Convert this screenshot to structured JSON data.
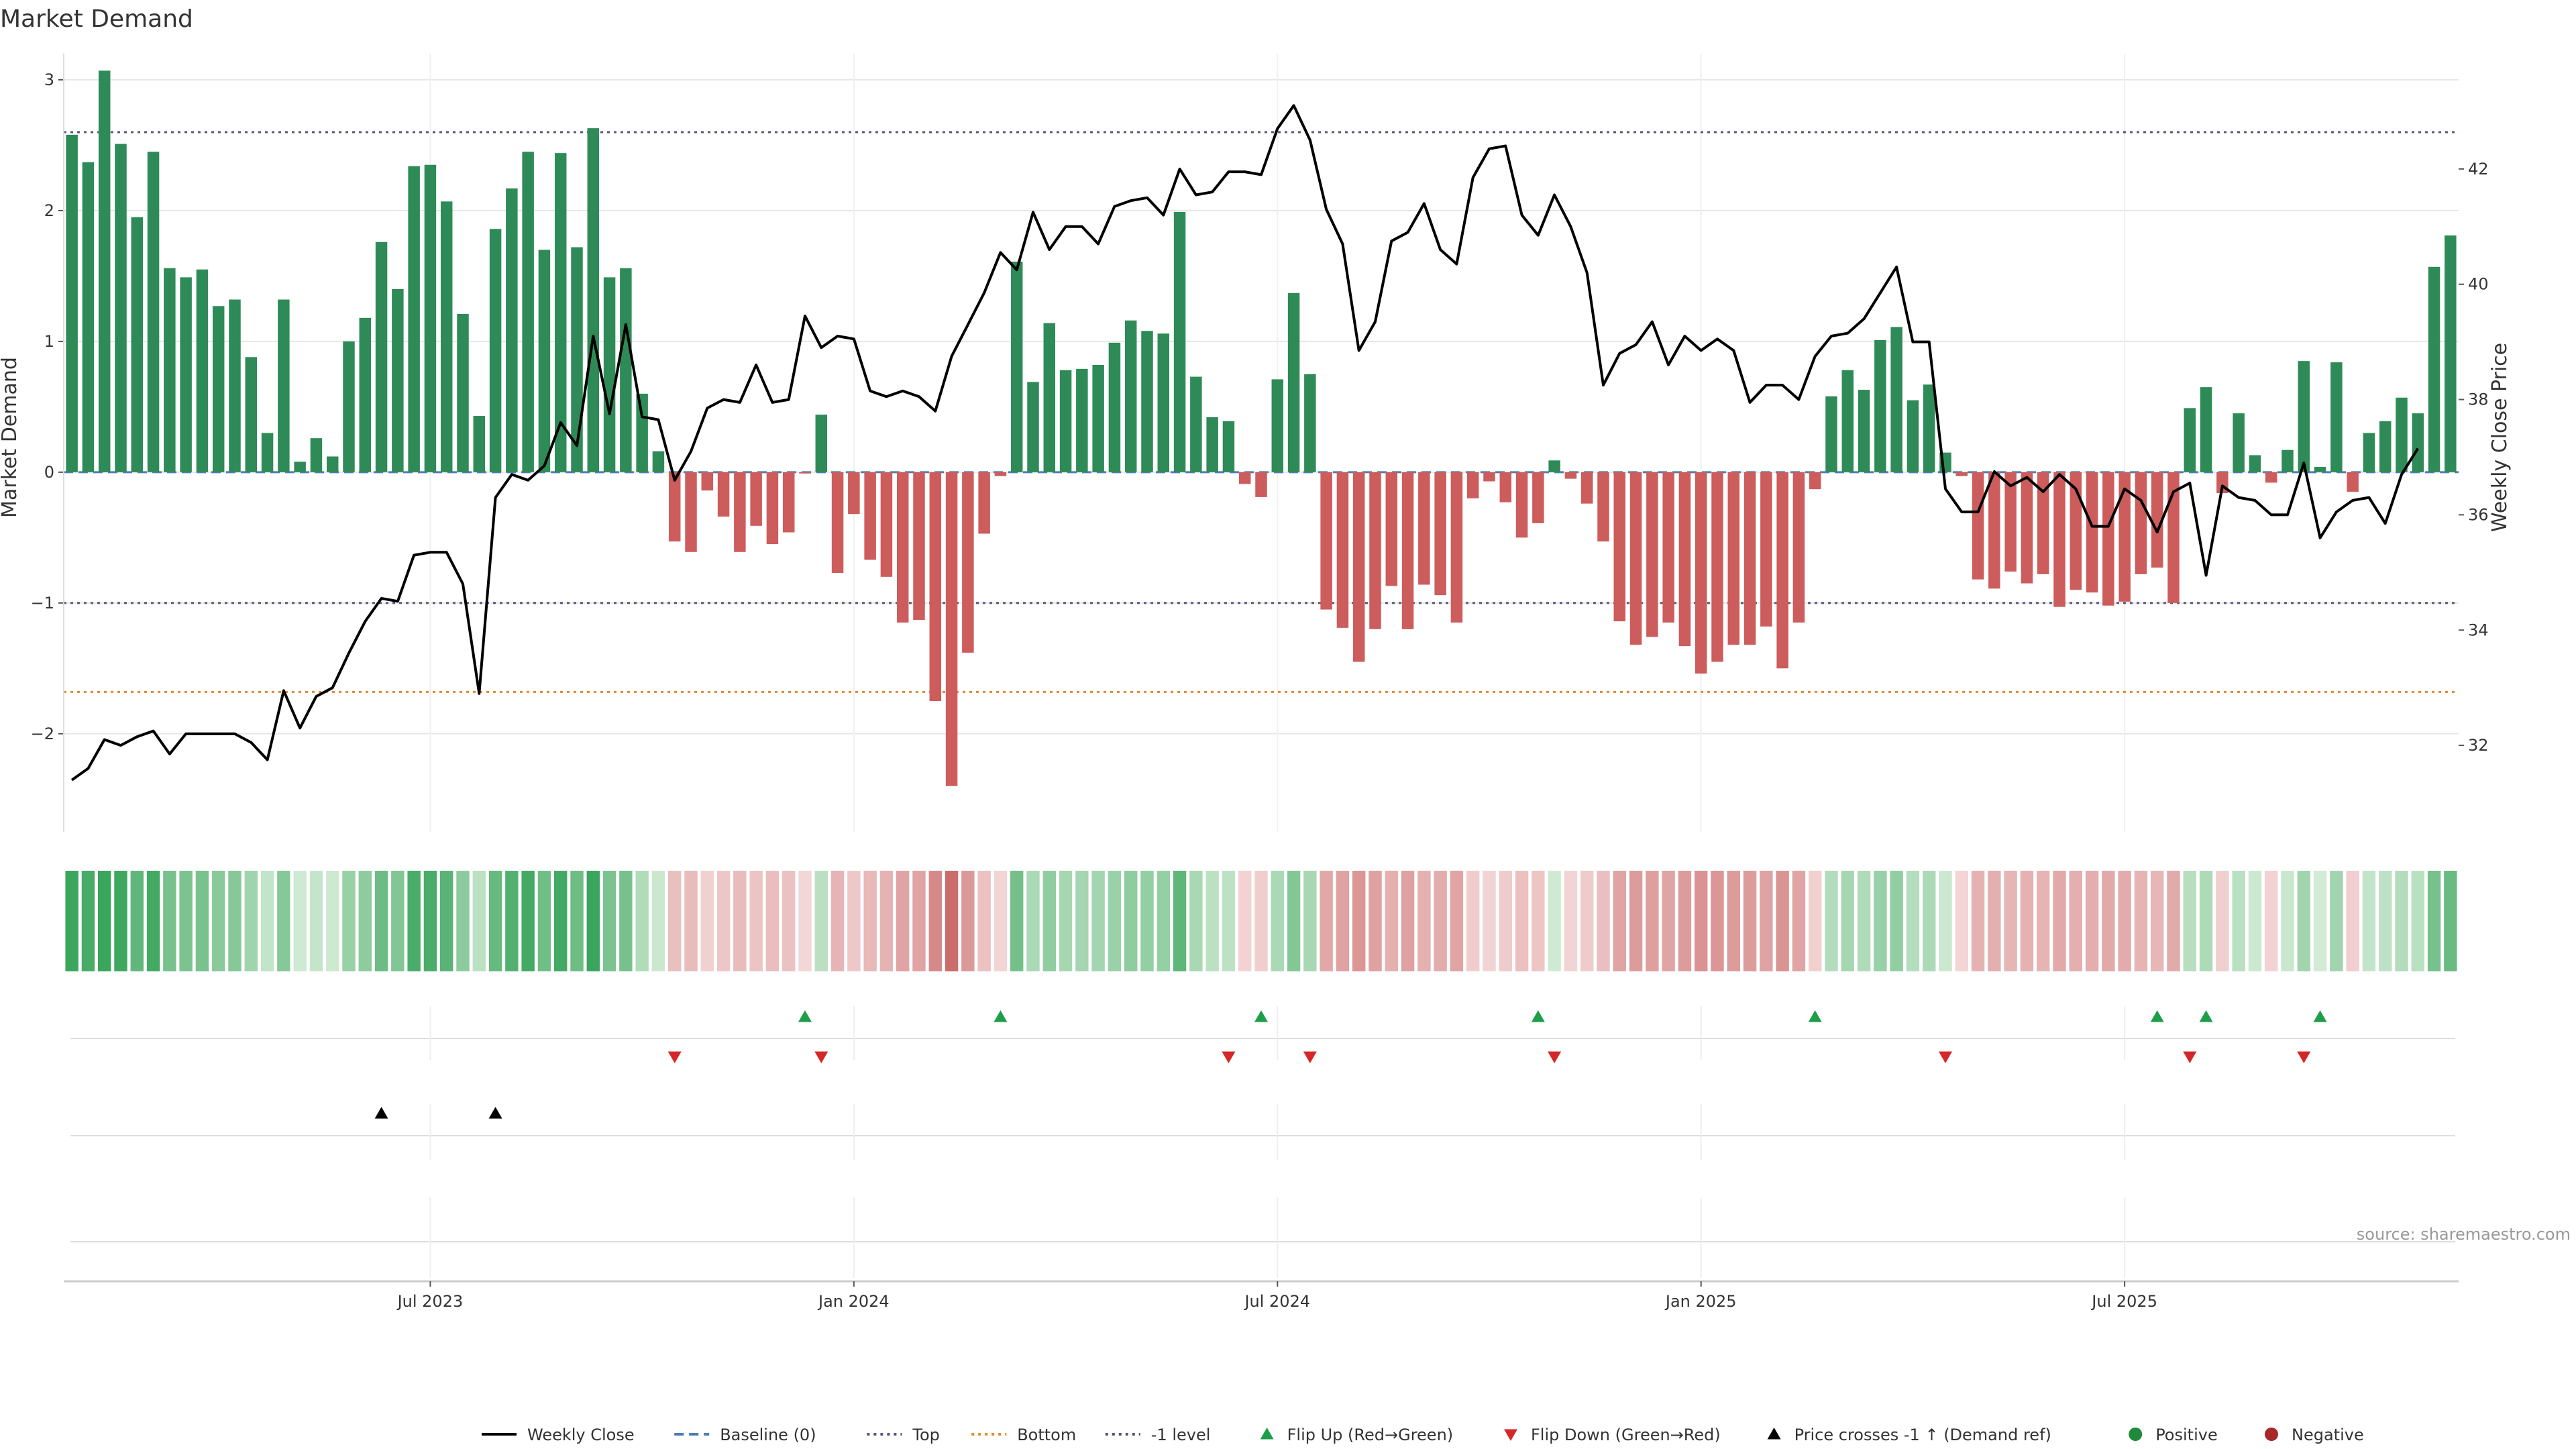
{
  "chart_data": {
    "type": "bar",
    "title": "Market Demand",
    "ylabel_left": "Market Demand",
    "ylabel_right": "Weekly Close Price",
    "ylim_left": [
      -2.75,
      3.2
    ],
    "ylim_right": [
      30.5,
      44.0
    ],
    "left_ticks": [
      3,
      2,
      1,
      0,
      -1,
      -2
    ],
    "left_tick_labels": [
      "3",
      "2",
      "1",
      "0",
      "−1",
      "−2"
    ],
    "right_ticks": [
      42,
      40,
      38,
      36,
      34,
      32
    ],
    "right_tick_labels": [
      "42",
      "40",
      "38",
      "36",
      "34",
      "32"
    ],
    "x_tick_labels": [
      {
        "label": "Jul 2023",
        "week": 22
      },
      {
        "label": "Jan 2024",
        "week": 48
      },
      {
        "label": "Jul 2024",
        "week": 74
      },
      {
        "label": "Jan 2025",
        "week": 100
      },
      {
        "label": "Jul 2025",
        "week": 126
      }
    ],
    "reference_lines": {
      "top": 2.6,
      "bottom": -1.68,
      "minus_one": -1.0,
      "baseline": 0
    },
    "demand": [
      2.58,
      2.37,
      3.07,
      2.51,
      1.95,
      2.45,
      1.56,
      1.49,
      1.55,
      1.27,
      1.32,
      0.88,
      0.3,
      1.32,
      0.08,
      0.26,
      0.12,
      1.0,
      1.18,
      1.76,
      1.4,
      2.34,
      2.35,
      2.07,
      1.21,
      0.43,
      1.86,
      2.17,
      2.45,
      1.7,
      2.44,
      1.72,
      2.63,
      1.49,
      1.56,
      0.6,
      0.16,
      -0.53,
      -0.61,
      -0.14,
      -0.34,
      -0.61,
      -0.41,
      -0.55,
      -0.46,
      -0.01,
      0.44,
      -0.77,
      -0.32,
      -0.67,
      -0.8,
      -1.15,
      -1.13,
      -1.75,
      -2.4,
      -1.38,
      -0.47,
      -0.03,
      1.61,
      0.69,
      1.14,
      0.78,
      0.79,
      0.82,
      0.99,
      1.16,
      1.08,
      1.06,
      1.99,
      0.73,
      0.42,
      0.39,
      -0.09,
      -0.19,
      0.71,
      1.37,
      0.75,
      -1.05,
      -1.19,
      -1.45,
      -1.2,
      -0.87,
      -1.2,
      -0.86,
      -0.94,
      -1.15,
      -0.2,
      -0.07,
      -0.23,
      -0.5,
      -0.39,
      0.09,
      -0.05,
      -0.24,
      -0.53,
      -1.14,
      -1.32,
      -1.26,
      -1.15,
      -1.33,
      -1.54,
      -1.45,
      -1.32,
      -1.32,
      -1.18,
      -1.5,
      -1.15,
      -0.13,
      0.58,
      0.78,
      0.63,
      1.01,
      1.11,
      0.55,
      0.67,
      0.15,
      -0.03,
      -0.82,
      -0.89,
      -0.76,
      -0.85,
      -0.78,
      -1.03,
      -0.9,
      -0.92,
      -1.02,
      -0.99,
      -0.78,
      -0.73,
      -1.0,
      0.49,
      0.65,
      -0.16,
      0.45,
      0.13,
      -0.08,
      0.17,
      0.85,
      0.04,
      0.84,
      -0.15,
      0.3,
      0.39,
      0.57,
      0.45,
      1.57,
      1.81
    ],
    "weekly_close": [
      31.4,
      31.6,
      32.1,
      32.0,
      32.15,
      32.25,
      31.85,
      32.2,
      32.2,
      32.2,
      32.2,
      32.05,
      31.75,
      32.95,
      32.3,
      32.85,
      33.0,
      33.6,
      34.15,
      34.55,
      34.5,
      35.3,
      35.35,
      35.35,
      34.8,
      32.9,
      36.3,
      36.7,
      36.6,
      36.85,
      37.6,
      37.2,
      39.1,
      37.75,
      39.3,
      37.7,
      37.65,
      36.6,
      37.1,
      37.85,
      38.0,
      37.95,
      38.6,
      37.95,
      38.0,
      39.45,
      38.9,
      39.1,
      39.05,
      38.15,
      38.05,
      38.15,
      38.05,
      37.8,
      38.75,
      39.3,
      39.85,
      40.55,
      40.25,
      41.25,
      40.6,
      41.0,
      41.0,
      40.7,
      41.35,
      41.45,
      41.5,
      41.2,
      42.0,
      41.55,
      41.6,
      41.95,
      41.95,
      41.9,
      42.7,
      43.1,
      42.5,
      41.3,
      40.7,
      38.85,
      39.35,
      40.75,
      40.9,
      41.4,
      40.6,
      40.35,
      41.85,
      42.35,
      42.4,
      41.2,
      40.85,
      41.55,
      41.0,
      40.2,
      38.25,
      38.8,
      38.95,
      39.35,
      38.6,
      39.1,
      38.85,
      39.05,
      38.85,
      37.95,
      38.25,
      38.25,
      38.0,
      38.75,
      39.1,
      39.15,
      39.4,
      39.85,
      40.3,
      39.0,
      39.0,
      36.45,
      36.05,
      36.05,
      36.75,
      36.5,
      36.65,
      36.4,
      36.7,
      36.45,
      35.8,
      35.8,
      36.45,
      36.25,
      35.7,
      36.4,
      36.55,
      34.95,
      36.5,
      36.3,
      36.25,
      36.0,
      36.0,
      36.9,
      35.6,
      36.05,
      36.25,
      36.3,
      35.85,
      36.7,
      37.15
    ],
    "flip_up_weeks": [
      45,
      57,
      73,
      90,
      107,
      128,
      131,
      138
    ],
    "flip_down_weeks": [
      37,
      46,
      71,
      76,
      91,
      115,
      130,
      137
    ],
    "price_cross_weeks": [
      19,
      26
    ],
    "legend": [
      {
        "label": "Weekly Close",
        "style": "solid-line",
        "color": "#000000"
      },
      {
        "label": "Baseline (0)",
        "style": "dashed-line",
        "color": "#4a7fb5"
      },
      {
        "label": "Top",
        "style": "dotted-line",
        "color": "#555577"
      },
      {
        "label": "Bottom",
        "style": "dotted-line",
        "color": "#e08a2e"
      },
      {
        "label": "-1 level",
        "style": "dotted-line",
        "color": "#555577"
      },
      {
        "label": "Flip Up (Red→Green)",
        "style": "triangle-up",
        "color": "#1f9e4a"
      },
      {
        "label": "Flip Down (Green→Red)",
        "style": "triangle-down",
        "color": "#d62728"
      },
      {
        "label": "Price crosses -1 ↑ (Demand ref)",
        "style": "triangle-up",
        "color": "#000000"
      },
      {
        "label": "Positive",
        "style": "dot",
        "color": "#1f8a3c"
      },
      {
        "label": "Negative",
        "style": "dot",
        "color": "#a8272a"
      }
    ],
    "source": "source: sharemaestro.com",
    "colors": {
      "positive_bar": "#2e8b57",
      "negative_bar": "#cd5c5c",
      "price_line": "#000000",
      "ref_line": "#555577",
      "bottom_line": "#e08a2e",
      "baseline": "#4a7fb5",
      "flip_up": "#1f9e4a",
      "flip_down": "#d62728",
      "grid": "#e6e6e6"
    }
  }
}
